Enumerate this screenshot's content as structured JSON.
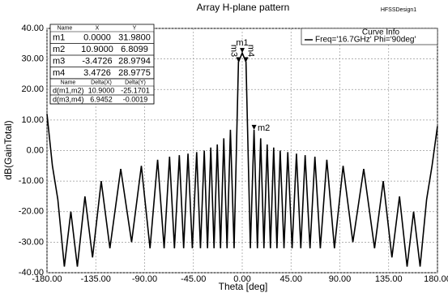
{
  "chart_data": {
    "type": "line",
    "title": "Array H-plane pattern",
    "watermark": "HFSSDesign1",
    "x_label": "Theta [deg]",
    "y_label": "dB(GainTotal)",
    "x": [
      -180,
      -175,
      -170,
      -164,
      -158,
      -152,
      -145,
      -138,
      -130,
      -122,
      -112,
      -102,
      -93,
      -85,
      -78,
      -72,
      -67,
      -62.5,
      -58,
      -54,
      -50,
      -46,
      -42,
      -38.5,
      -35,
      -32,
      -29,
      -26,
      -23,
      -20,
      -17,
      -14,
      -10.9,
      -7.5,
      -3.4726,
      0,
      3.4726,
      7.5,
      10.9,
      14,
      17,
      20,
      23,
      26,
      29,
      32,
      35,
      38.5,
      42,
      46,
      50,
      54,
      58,
      62.5,
      67,
      72,
      78,
      85,
      93,
      102,
      112,
      122,
      130,
      138,
      145,
      152,
      158,
      164,
      170,
      175,
      180
    ],
    "series": [
      {
        "name": "Freq='16.7GHz' Phi='90deg'",
        "color": "#000000",
        "values": [
          12,
          -5,
          -16,
          -38,
          -20,
          -38,
          -15,
          -35,
          -10,
          -32,
          -6,
          -30,
          -5,
          -32,
          -3,
          -32,
          -2,
          -32,
          -1.5,
          -32,
          -1,
          -32,
          -0.5,
          -32,
          0,
          -32,
          1,
          -32,
          2,
          -32,
          4,
          -32,
          6.8,
          -32,
          28.9794,
          31.98,
          28.9775,
          -32,
          6.8099,
          -32,
          4,
          -32,
          2,
          -32,
          1,
          -32,
          0,
          -32,
          -0.5,
          -32,
          -1,
          -32,
          -1.5,
          -32,
          -2,
          -32,
          -3,
          -32,
          -5,
          -30,
          -6,
          -32,
          -10,
          -35,
          -15,
          -38,
          -20,
          -38,
          -16,
          -5,
          8
        ]
      }
    ],
    "xlim": [
      -180,
      180
    ],
    "ylim": [
      -40,
      40
    ],
    "xticks": [
      {
        "value": -180,
        "label": "-180.00"
      },
      {
        "value": -135,
        "label": "-135.00"
      },
      {
        "value": -90,
        "label": "-90.00"
      },
      {
        "value": -45,
        "label": "-45.00"
      },
      {
        "value": 0,
        "label": "0.00"
      },
      {
        "value": 45,
        "label": "45.00"
      },
      {
        "value": 90,
        "label": "90.00"
      },
      {
        "value": 135,
        "label": "135.00"
      },
      {
        "value": 180,
        "label": "180.00"
      }
    ],
    "yticks": [
      {
        "value": 40,
        "label": "40.00"
      },
      {
        "value": 30,
        "label": "30.00"
      },
      {
        "value": 20,
        "label": "20.00"
      },
      {
        "value": 10,
        "label": "10.00"
      },
      {
        "value": 0,
        "label": "0.00"
      },
      {
        "value": -10,
        "label": "-10.00"
      },
      {
        "value": -20,
        "label": "-20.00"
      },
      {
        "value": -30,
        "label": "-30.00"
      },
      {
        "value": -40,
        "label": "-40.00"
      }
    ],
    "grid": true,
    "legend_title": "Curve Info",
    "markers": [
      {
        "name": "m1",
        "x": 0,
        "y": 31.98
      },
      {
        "name": "m2",
        "x": 10.9,
        "y": 6.8099
      },
      {
        "name": "m3",
        "x": -3.4726,
        "y": 28.9794
      },
      {
        "name": "m4",
        "x": 3.4726,
        "y": 28.9775
      }
    ],
    "marker_table": {
      "columns": [
        "Name",
        "X",
        "Y"
      ],
      "rows": [
        [
          "m1",
          "0.0000",
          "31.9800"
        ],
        [
          "m2",
          "10.9000",
          "6.8099"
        ],
        [
          "m3",
          "-3.4726",
          "28.9794"
        ],
        [
          "m4",
          "3.4726",
          "28.9775"
        ]
      ]
    },
    "delta_table": {
      "columns": [
        "Name",
        "Delta(X)",
        "Delta(Y)"
      ],
      "rows": [
        [
          "d(m1,m2)",
          "10.9000",
          "-25.1701"
        ],
        [
          "d(m3,m4)",
          "6.9452",
          "-0.0019"
        ]
      ]
    }
  }
}
